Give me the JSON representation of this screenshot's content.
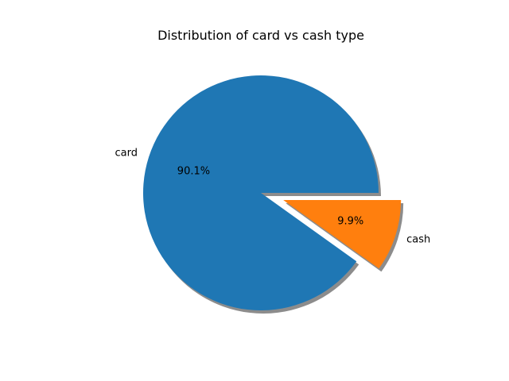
{
  "chart_data": {
    "type": "pie",
    "title": "Distribution of card vs cash type",
    "categories": [
      "card",
      "cash"
    ],
    "values": [
      90.1,
      9.9
    ],
    "percent_labels": [
      "90.1%",
      "9.9%"
    ],
    "colors": [
      "#1f77b4",
      "#ff7f0e"
    ],
    "explode": [
      0,
      0.2
    ],
    "shadow": true,
    "start_angle_degrees": 0,
    "direction": "counterclockwise"
  }
}
